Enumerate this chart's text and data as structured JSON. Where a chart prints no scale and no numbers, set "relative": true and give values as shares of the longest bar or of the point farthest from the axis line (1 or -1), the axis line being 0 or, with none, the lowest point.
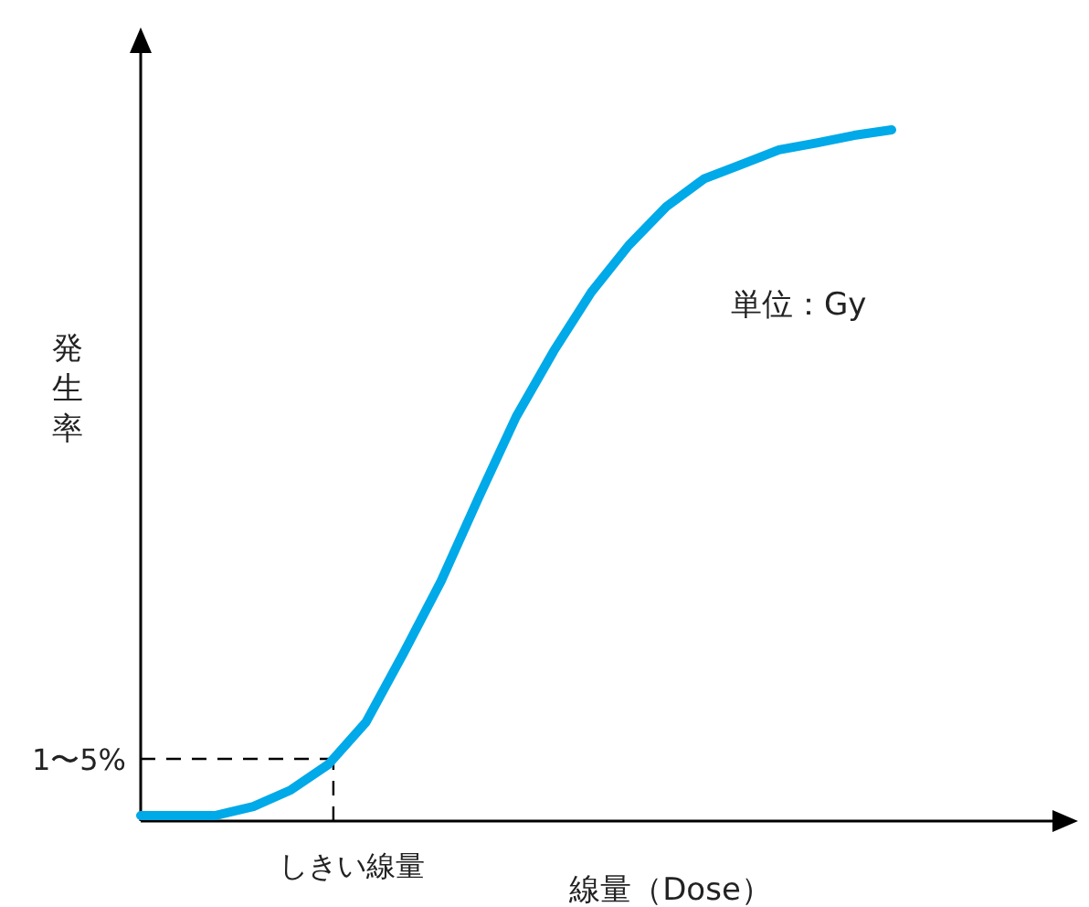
{
  "chart_data": {
    "type": "line",
    "relative": true,
    "xlabel": "線量（Dose）",
    "ylabel": "発生率",
    "annotations": [
      "単位：Gy",
      "しきい線量"
    ],
    "categories": [
      null,
      null,
      null,
      null,
      null,
      null,
      null,
      null,
      null,
      null,
      null,
      null,
      null,
      null,
      null,
      null,
      null,
      null,
      null,
      null,
      null
    ],
    "series": [
      {
        "color": "#00a9e8",
        "values": [
          0.008,
          0.008,
          0.008,
          0.021,
          0.045,
          0.082,
          0.143,
          0.243,
          0.347,
          0.468,
          0.585,
          0.68,
          0.765,
          0.833,
          0.889,
          0.929,
          0.95,
          0.971,
          0.981,
          0.992,
          1
        ]
      }
    ],
    "ref_lines": [
      {
        "axis": "y",
        "value": 0.09,
        "label": "1〜5%",
        "line_style": "dashed"
      }
    ],
    "line_style": "solid"
  }
}
